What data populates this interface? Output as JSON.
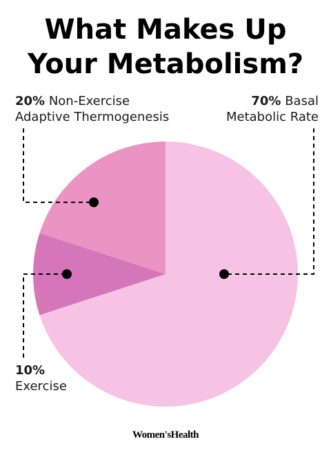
{
  "title_lines": [
    "What Makes Up",
    "Your Metabolism?"
  ],
  "labels": {
    "neat": {
      "pct": "20%",
      "line1": "Non-Exercise",
      "line2": "Adaptive Thermogenesis"
    },
    "bmr": {
      "pct": "70%",
      "line1": "Basal",
      "line2": "Metabolic Rate"
    },
    "exercise": {
      "pct": "10%",
      "line2": "Exercise"
    }
  },
  "brand": "Women'sHealth",
  "chart_data": {
    "type": "pie",
    "title": "What Makes Up Your Metabolism?",
    "slices": [
      {
        "label": "Basal Metabolic Rate",
        "value": 70,
        "color": "#f6c3e5"
      },
      {
        "label": "Exercise",
        "value": 10,
        "color": "#d476b9"
      },
      {
        "label": "Non-Exercise Adaptive Thermogenesis",
        "value": 20,
        "color": "#eb93c3"
      }
    ],
    "start": "12 o'clock",
    "direction": "clockwise",
    "legend": "callout labels with dashed leader lines"
  }
}
